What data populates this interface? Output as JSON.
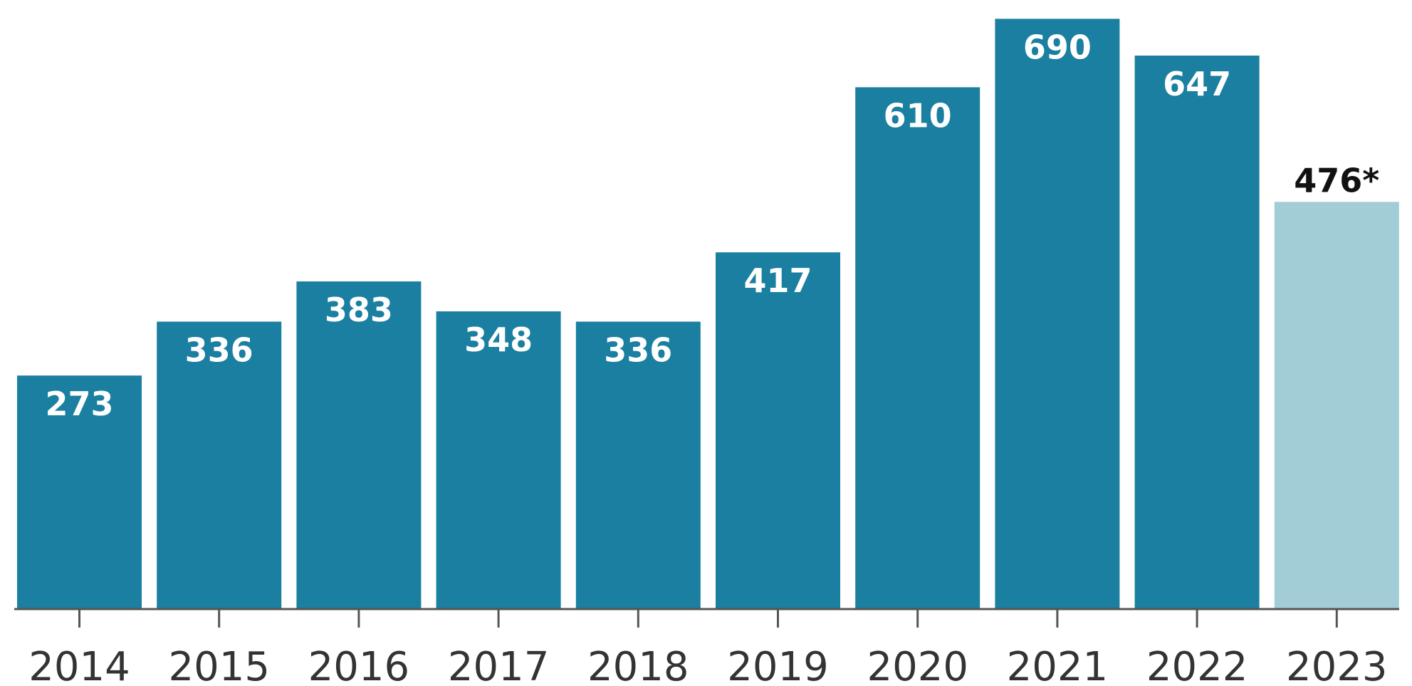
{
  "chart_data": {
    "type": "bar",
    "categories": [
      "2014",
      "2015",
      "2016",
      "2017",
      "2018",
      "2019",
      "2020",
      "2021",
      "2022",
      "2023"
    ],
    "values": [
      273,
      336,
      383,
      348,
      336,
      417,
      610,
      690,
      647,
      476
    ],
    "labels": [
      "273",
      "336",
      "383",
      "348",
      "336",
      "417",
      "610",
      "690",
      "647",
      "476*"
    ],
    "ylim": [
      0,
      702
    ],
    "colors": {
      "bar": "#1a7fa0",
      "highlight_bar": "#a3cdd6",
      "label_inside": "#ffffff",
      "label_outside": "#111111",
      "axis": "#555555"
    },
    "highlight_index": 9
  }
}
